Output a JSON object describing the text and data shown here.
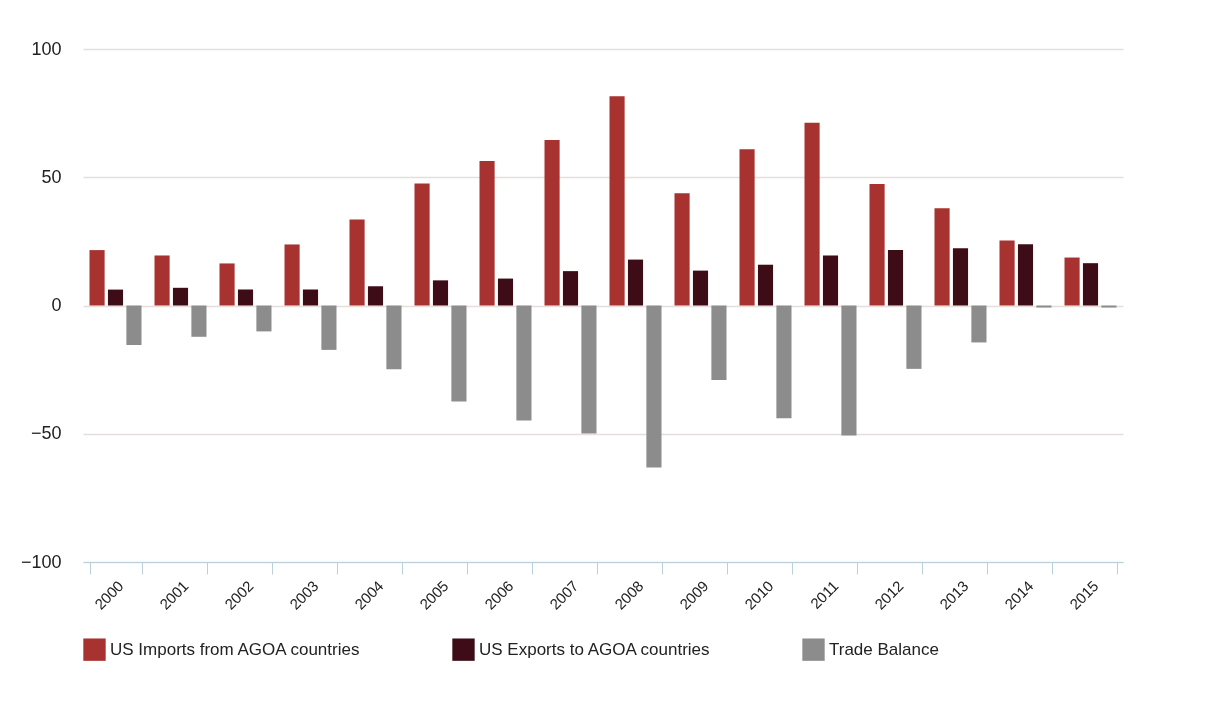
{
  "chart_data": {
    "type": "bar",
    "categories": [
      "2000",
      "2001",
      "2002",
      "2003",
      "2004",
      "2005",
      "2006",
      "2007",
      "2008",
      "2009",
      "2010",
      "2011",
      "2012",
      "2013",
      "2014",
      "2015"
    ],
    "series": [
      {
        "name": "US Imports from AGOA countries",
        "color": "#a8322f",
        "values": [
          21.6,
          19.5,
          16.4,
          23.8,
          33.5,
          47.6,
          56.3,
          64.5,
          81.6,
          43.8,
          60.9,
          71.2,
          47.4,
          37.9,
          25.3,
          18.7
        ]
      },
      {
        "name": "US Exports to AGOA countries",
        "color": "#3d0c16",
        "values": [
          6.2,
          6.9,
          6.2,
          6.2,
          7.5,
          9.8,
          10.5,
          13.4,
          17.9,
          13.6,
          15.9,
          19.5,
          21.6,
          22.3,
          23.9,
          16.5
        ]
      },
      {
        "name": "Trade Balance",
        "color": "#8c8c8c",
        "values": [
          -15.4,
          -12.2,
          -10.1,
          -17.3,
          -24.9,
          -37.4,
          -44.8,
          -49.9,
          -63.2,
          -29.0,
          -44.0,
          -50.7,
          -24.7,
          -14.4,
          -0.8,
          -0.8
        ]
      }
    ],
    "ylim": [
      -100,
      100
    ],
    "yticks": [
      -100,
      -50,
      0,
      50,
      100
    ],
    "grid": "y",
    "legend": "bottom"
  }
}
